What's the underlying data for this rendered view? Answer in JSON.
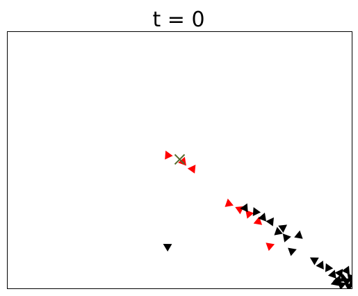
{
  "chart_data": {
    "type": "scatter",
    "title": "t = 0",
    "xlabel": "",
    "ylabel": "",
    "xlim": [
      0,
      1
    ],
    "ylim": [
      0,
      1
    ],
    "grid": false,
    "axis_ticks": false,
    "marker": "triangle",
    "series": [
      {
        "color": "#ff0000",
        "points": [
          {
            "x": 0.465,
            "y": 0.52
          },
          {
            "x": 0.51,
            "y": 0.495
          },
          {
            "x": 0.538,
            "y": 0.467
          },
          {
            "x": 0.642,
            "y": 0.332
          },
          {
            "x": 0.675,
            "y": 0.31
          },
          {
            "x": 0.7,
            "y": 0.292
          },
          {
            "x": 0.728,
            "y": 0.262
          },
          {
            "x": 0.762,
            "y": 0.167
          }
        ]
      },
      {
        "color": "#000000",
        "points": [
          {
            "x": 0.464,
            "y": 0.165
          },
          {
            "x": 0.69,
            "y": 0.315
          },
          {
            "x": 0.72,
            "y": 0.3
          },
          {
            "x": 0.742,
            "y": 0.278
          },
          {
            "x": 0.765,
            "y": 0.262
          },
          {
            "x": 0.785,
            "y": 0.222
          },
          {
            "x": 0.8,
            "y": 0.238
          },
          {
            "x": 0.808,
            "y": 0.2
          },
          {
            "x": 0.846,
            "y": 0.208
          },
          {
            "x": 0.826,
            "y": 0.147
          },
          {
            "x": 0.89,
            "y": 0.112
          },
          {
            "x": 0.91,
            "y": 0.092
          },
          {
            "x": 0.93,
            "y": 0.082
          },
          {
            "x": 0.945,
            "y": 0.056
          },
          {
            "x": 0.965,
            "y": 0.062
          },
          {
            "x": 0.975,
            "y": 0.04
          },
          {
            "x": 0.985,
            "y": 0.03
          },
          {
            "x": 0.995,
            "y": 0.045
          },
          {
            "x": 0.952,
            "y": 0.025
          },
          {
            "x": 0.97,
            "y": 0.015
          },
          {
            "x": 0.99,
            "y": 0.01
          },
          {
            "x": 0.985,
            "y": 0.072
          },
          {
            "x": 1.0,
            "y": 0.02
          },
          {
            "x": 0.96,
            "y": 0.035
          }
        ]
      }
    ],
    "target": {
      "marker": "x",
      "color": "#556b2f",
      "x": 0.5,
      "y": 0.503
    }
  }
}
